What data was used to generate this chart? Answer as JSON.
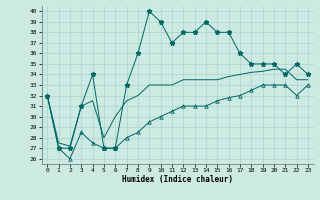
{
  "xlabel": "Humidex (Indice chaleur)",
  "xlim": [
    -0.5,
    23.5
  ],
  "ylim": [
    25.5,
    40.5
  ],
  "yticks": [
    26,
    27,
    28,
    29,
    30,
    31,
    32,
    33,
    34,
    35,
    36,
    37,
    38,
    39,
    40
  ],
  "xticks": [
    0,
    1,
    2,
    3,
    4,
    5,
    6,
    7,
    8,
    9,
    10,
    11,
    12,
    13,
    14,
    15,
    16,
    17,
    18,
    19,
    20,
    21,
    22,
    23
  ],
  "bg_color": "#cce9e2",
  "grid_color": "#aad4cc",
  "line_color": "#006666",
  "series_max": [
    32,
    27,
    27,
    31,
    34,
    27,
    27,
    33,
    36,
    40,
    39,
    37,
    38,
    38,
    39,
    38,
    38,
    36,
    35,
    35,
    35,
    34,
    35,
    34
  ],
  "series_mean": [
    32,
    27.5,
    27.2,
    31,
    31.5,
    28,
    30,
    31.5,
    32,
    33,
    33,
    33,
    33.5,
    33.5,
    33.5,
    33.5,
    33.8,
    34,
    34.2,
    34.3,
    34.5,
    34.5,
    33.5,
    33.5
  ],
  "series_min": [
    32,
    27,
    26,
    28.5,
    27.5,
    27,
    27,
    28,
    28.5,
    29.5,
    30,
    30.5,
    31,
    31,
    31,
    31.5,
    31.8,
    32,
    32.5,
    33,
    33,
    33,
    32,
    33
  ]
}
